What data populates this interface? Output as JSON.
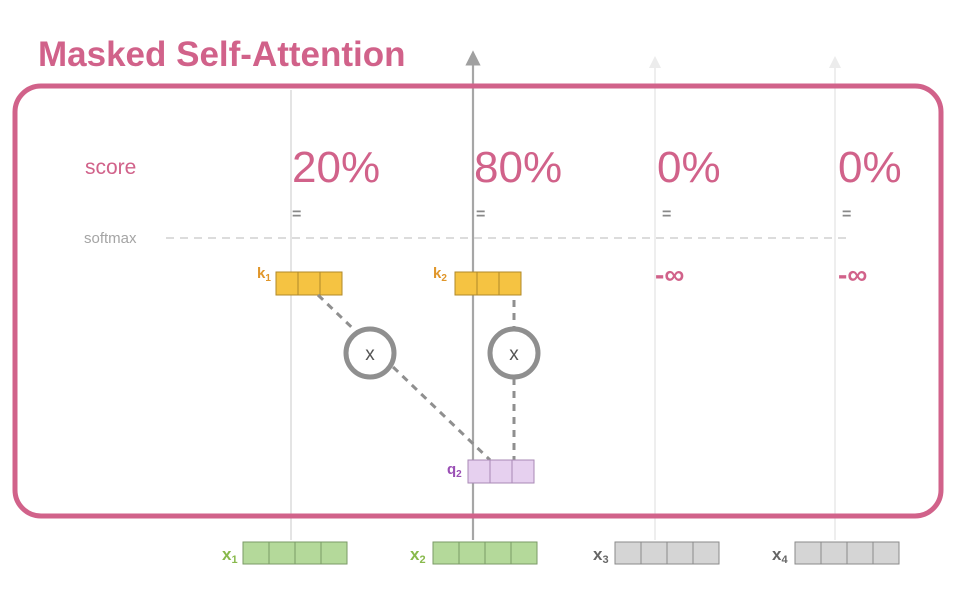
{
  "title": "Masked Self-Attention",
  "score_label": "score",
  "softmax_label": "softmax",
  "equals_sign": "=",
  "scores": [
    {
      "value": "20%"
    },
    {
      "value": "80%"
    },
    {
      "value": "0%"
    },
    {
      "value": "0%"
    }
  ],
  "keys": [
    {
      "label": "k",
      "sub": "1"
    },
    {
      "label": "k",
      "sub": "2"
    }
  ],
  "masked": [
    {
      "label": "-∞"
    },
    {
      "label": "-∞"
    }
  ],
  "multiply_symbol": "x",
  "query": {
    "label": "q",
    "sub": "2"
  },
  "inputs": [
    {
      "label": "x",
      "sub": "1"
    },
    {
      "label": "x",
      "sub": "2"
    },
    {
      "label": "x",
      "sub": "3"
    },
    {
      "label": "x",
      "sub": "4"
    }
  ],
  "colors": {
    "accent": "#d1628a",
    "key_fill": "#f5c342",
    "key_label": "#e0962a",
    "query_fill": "#e6d0ef",
    "query_label": "#9a4fb5",
    "input_active": "#b4d99a",
    "input_label_active": "#88b94c",
    "input_masked": "#d5d5d5",
    "input_label_masked": "#666666",
    "grey": "#9a9a9a"
  }
}
